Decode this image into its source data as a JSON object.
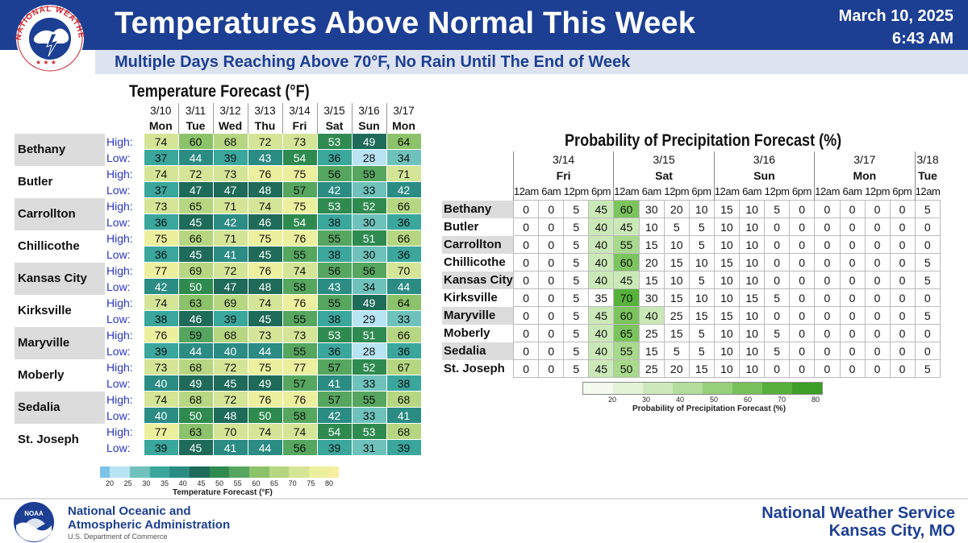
{
  "header": {
    "title": "Temperatures Above Normal This Week",
    "date": "March 10, 2025",
    "time": "6:43 AM",
    "subtitle": "Multiple Days Reaching Above 70°F, No Rain Until The End of Week",
    "logo_ring_text": "NATIONAL WEATHER SERVICE"
  },
  "footer": {
    "noaa_line1": "National Oceanic and",
    "noaa_line2": "Atmospheric Administration",
    "noaa_line3": "U.S. Department of Commerce",
    "noaa_badge": "NOAA",
    "nws_line1": "National Weather Service",
    "nws_line2": "Kansas City, MO"
  },
  "colors": {
    "brand_blue": "#1c3f94",
    "high_low_label": "#2a36c8"
  },
  "chart_data": [
    {
      "type": "table",
      "title": "Temperature Forecast (°F)",
      "row_labels": [
        "High:",
        "Low:"
      ],
      "dates": [
        "3/10",
        "3/11",
        "3/12",
        "3/13",
        "3/14",
        "3/15",
        "3/16",
        "3/17"
      ],
      "days": [
        "Mon",
        "Tue",
        "Wed",
        "Thu",
        "Fri",
        "Sat",
        "Sun",
        "Mon"
      ],
      "cities": [
        {
          "name": "Bethany",
          "high": [
            74,
            60,
            68,
            72,
            73,
            53,
            49,
            64
          ],
          "low": [
            37,
            44,
            39,
            43,
            54,
            36,
            28,
            34
          ]
        },
        {
          "name": "Butler",
          "high": [
            74,
            72,
            73,
            76,
            75,
            56,
            59,
            71
          ],
          "low": [
            37,
            47,
            47,
            48,
            57,
            42,
            33,
            42
          ]
        },
        {
          "name": "Carrollton",
          "high": [
            73,
            65,
            71,
            74,
            75,
            53,
            52,
            66
          ],
          "low": [
            36,
            45,
            42,
            46,
            54,
            38,
            30,
            36
          ]
        },
        {
          "name": "Chillicothe",
          "high": [
            75,
            66,
            71,
            75,
            76,
            55,
            51,
            66
          ],
          "low": [
            36,
            45,
            41,
            45,
            55,
            38,
            30,
            36
          ]
        },
        {
          "name": "Kansas City",
          "high": [
            77,
            69,
            72,
            76,
            74,
            56,
            56,
            70
          ],
          "low": [
            42,
            50,
            47,
            48,
            58,
            43,
            34,
            44
          ]
        },
        {
          "name": "Kirksville",
          "high": [
            74,
            63,
            69,
            74,
            76,
            55,
            49,
            64
          ],
          "low": [
            38,
            46,
            39,
            45,
            55,
            38,
            29,
            33
          ]
        },
        {
          "name": "Maryville",
          "high": [
            76,
            59,
            68,
            73,
            73,
            53,
            51,
            66
          ],
          "low": [
            39,
            44,
            40,
            44,
            55,
            36,
            28,
            36
          ]
        },
        {
          "name": "Moberly",
          "high": [
            73,
            68,
            72,
            75,
            77,
            57,
            52,
            67
          ],
          "low": [
            40,
            49,
            45,
            49,
            57,
            41,
            33,
            38
          ]
        },
        {
          "name": "Sedalia",
          "high": [
            74,
            68,
            72,
            76,
            76,
            57,
            55,
            68
          ],
          "low": [
            40,
            50,
            48,
            50,
            58,
            42,
            33,
            41
          ]
        },
        {
          "name": "St. Joseph",
          "high": [
            77,
            63,
            70,
            74,
            74,
            54,
            53,
            68
          ],
          "low": [
            39,
            45,
            41,
            44,
            56,
            39,
            31,
            39
          ]
        }
      ],
      "colorbar": {
        "label": "Temperature Forecast (°F)",
        "ticks": [
          "20",
          "25",
          "30",
          "35",
          "40",
          "45",
          "50",
          "55",
          "60",
          "65",
          "70",
          "75",
          "80"
        ],
        "colors": [
          "#7cc3e8",
          "#b8e3f3",
          "#6fc2bc",
          "#3aa69c",
          "#2b8c84",
          "#1f6b59",
          "#2f8a50",
          "#56a660",
          "#8cc26a",
          "#b6d681",
          "#d4e597",
          "#ecef9e",
          "#f8efa0"
        ]
      }
    },
    {
      "type": "table",
      "title": "Probability of Precipitation Forecast (%)",
      "day_groups": [
        {
          "date": "3/14",
          "day": "Fri"
        },
        {
          "date": "3/15",
          "day": "Sat"
        },
        {
          "date": "3/16",
          "day": "Sun"
        },
        {
          "date": "3/17",
          "day": "Mon"
        },
        {
          "date": "3/18",
          "day": "Tue"
        }
      ],
      "times": [
        "12am",
        "6am",
        "12pm",
        "6pm",
        "12am",
        "6am",
        "12pm",
        "6pm",
        "12am",
        "6am",
        "12pm",
        "6pm",
        "12am",
        "6am",
        "12pm",
        "6pm",
        "12am"
      ],
      "cities": [
        {
          "name": "Bethany",
          "values": [
            0,
            0,
            5,
            45,
            60,
            30,
            20,
            10,
            15,
            10,
            5,
            0,
            0,
            0,
            0,
            0,
            5
          ]
        },
        {
          "name": "Butler",
          "values": [
            0,
            0,
            5,
            40,
            45,
            10,
            5,
            5,
            10,
            10,
            0,
            0,
            0,
            0,
            0,
            0,
            0
          ]
        },
        {
          "name": "Carrollton",
          "values": [
            0,
            0,
            5,
            40,
            55,
            15,
            10,
            5,
            10,
            10,
            0,
            0,
            0,
            0,
            0,
            0,
            0
          ]
        },
        {
          "name": "Chillicothe",
          "values": [
            0,
            0,
            5,
            40,
            60,
            20,
            15,
            10,
            15,
            10,
            0,
            0,
            0,
            0,
            0,
            0,
            5
          ]
        },
        {
          "name": "Kansas City",
          "values": [
            0,
            0,
            5,
            40,
            45,
            15,
            10,
            5,
            10,
            10,
            0,
            0,
            0,
            0,
            0,
            0,
            5
          ]
        },
        {
          "name": "Kirksville",
          "values": [
            0,
            0,
            5,
            35,
            70,
            30,
            15,
            10,
            10,
            15,
            5,
            0,
            0,
            0,
            0,
            0,
            0
          ]
        },
        {
          "name": "Maryville",
          "values": [
            0,
            0,
            5,
            45,
            60,
            40,
            25,
            15,
            15,
            10,
            0,
            0,
            0,
            0,
            0,
            0,
            5
          ]
        },
        {
          "name": "Moberly",
          "values": [
            0,
            0,
            5,
            40,
            65,
            25,
            15,
            5,
            10,
            10,
            5,
            0,
            0,
            0,
            0,
            0,
            0
          ]
        },
        {
          "name": "Sedalia",
          "values": [
            0,
            0,
            5,
            40,
            55,
            15,
            5,
            5,
            10,
            10,
            5,
            0,
            0,
            0,
            0,
            0,
            0
          ]
        },
        {
          "name": "St. Joseph",
          "values": [
            0,
            0,
            5,
            45,
            50,
            25,
            20,
            15,
            10,
            10,
            0,
            0,
            0,
            0,
            0,
            0,
            5
          ]
        }
      ],
      "colorbar": {
        "label": "Probability of Precipitation Forecast (%)",
        "ticks": [
          "20",
          "30",
          "40",
          "50",
          "60",
          "70",
          "80"
        ],
        "colors": [
          "#f4fbee",
          "#e3f3d6",
          "#cde9bb",
          "#b3de9b",
          "#96d07b",
          "#78c15b",
          "#56b03a",
          "#3d9e27"
        ]
      }
    }
  ]
}
